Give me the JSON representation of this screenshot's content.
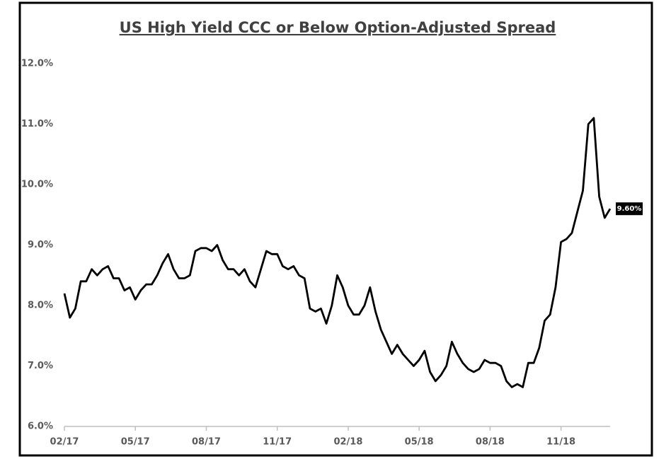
{
  "chart_data": {
    "type": "line",
    "title": "US High Yield CCC or Below Option-Adjusted Spread",
    "categories": [
      "02/17",
      null,
      null,
      null,
      null,
      null,
      null,
      null,
      null,
      null,
      null,
      null,
      null,
      "05/17",
      null,
      null,
      null,
      null,
      null,
      null,
      null,
      null,
      null,
      null,
      null,
      null,
      "08/17",
      null,
      null,
      null,
      null,
      null,
      null,
      null,
      null,
      null,
      null,
      null,
      null,
      "11/17",
      null,
      null,
      null,
      null,
      null,
      null,
      null,
      null,
      null,
      null,
      null,
      null,
      "02/18",
      null,
      null,
      null,
      null,
      null,
      null,
      null,
      null,
      null,
      null,
      null,
      null,
      "05/18",
      null,
      null,
      null,
      null,
      null,
      null,
      null,
      null,
      null,
      null,
      null,
      null,
      "08/18",
      null,
      null,
      null,
      null,
      null,
      null,
      null,
      null,
      null,
      null,
      null,
      null,
      "11/18",
      null,
      null,
      null,
      null,
      null,
      null,
      null,
      null,
      null
    ],
    "series": [
      {
        "color": "#000000",
        "values": [
          8.2,
          7.8,
          7.95,
          8.4,
          8.4,
          8.6,
          8.5,
          8.6,
          8.65,
          8.45,
          8.45,
          8.25,
          8.3,
          8.1,
          8.25,
          8.35,
          8.35,
          8.5,
          8.7,
          8.85,
          8.6,
          8.45,
          8.45,
          8.5,
          8.9,
          8.95,
          8.95,
          8.9,
          9.0,
          8.75,
          8.6,
          8.6,
          8.5,
          8.6,
          8.4,
          8.3,
          8.6,
          8.9,
          8.85,
          8.85,
          8.65,
          8.6,
          8.65,
          8.5,
          8.45,
          7.95,
          7.9,
          7.95,
          7.7,
          8.0,
          8.5,
          8.3,
          8.0,
          7.85,
          7.85,
          8.0,
          8.3,
          7.9,
          7.6,
          7.4,
          7.2,
          7.35,
          7.2,
          7.1,
          7.0,
          7.1,
          7.25,
          6.9,
          6.75,
          6.85,
          7.0,
          7.4,
          7.2,
          7.05,
          6.95,
          6.9,
          6.95,
          7.1,
          7.05,
          7.05,
          7.0,
          6.75,
          6.65,
          6.7,
          6.65,
          7.05,
          7.05,
          7.3,
          7.75,
          7.85,
          8.3,
          9.05,
          9.1,
          9.2,
          9.55,
          9.9,
          11.0,
          11.1,
          9.8,
          9.45,
          9.6
        ],
        "value_labels": [
          null,
          null,
          null,
          null,
          null,
          null,
          null,
          null,
          null,
          null,
          null,
          null,
          null,
          null,
          null,
          null,
          null,
          null,
          null,
          null,
          null,
          null,
          null,
          null,
          null,
          null,
          null,
          null,
          null,
          null,
          null,
          null,
          null,
          null,
          null,
          null,
          null,
          null,
          null,
          null,
          null,
          null,
          null,
          null,
          null,
          null,
          null,
          null,
          null,
          null,
          null,
          null,
          null,
          null,
          null,
          null,
          null,
          null,
          null,
          null,
          null,
          null,
          null,
          null,
          null,
          null,
          null,
          null,
          null,
          null,
          null,
          null,
          null,
          null,
          null,
          null,
          null,
          null,
          null,
          null,
          null,
          null,
          null,
          null,
          null,
          null,
          null,
          null,
          null,
          null,
          null,
          null,
          null,
          null,
          null,
          null,
          null,
          null,
          null,
          null,
          "9.60%"
        ]
      }
    ],
    "ylim": [
      6,
      12
    ],
    "yticks": [
      {
        "value": 6,
        "label": "6.0%"
      },
      {
        "value": 7,
        "label": "7.0%"
      },
      {
        "value": 8,
        "label": "8.0%"
      },
      {
        "value": 9,
        "label": "9.0%"
      },
      {
        "value": 10,
        "label": "10.0%"
      },
      {
        "value": 11,
        "label": "11.0%"
      },
      {
        "value": 12,
        "label": "12.0%"
      }
    ],
    "grid": false
  }
}
